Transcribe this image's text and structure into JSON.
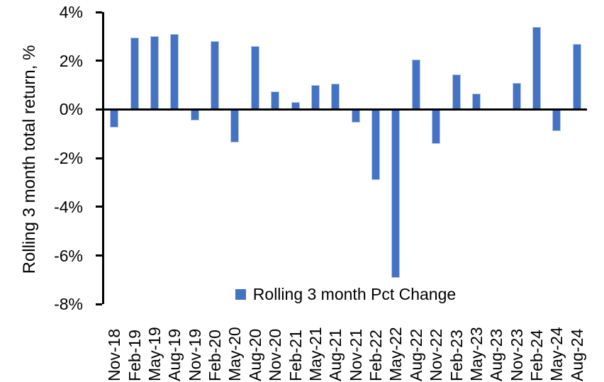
{
  "chart_data": {
    "type": "bar",
    "ylabel": "Rolling 3 month total return, %",
    "xlabel": "",
    "categories": [
      "Nov-18",
      "Feb-19",
      "May-19",
      "Aug-19",
      "Nov-19",
      "Feb-20",
      "May-20",
      "Aug-20",
      "Nov-20",
      "Feb-21",
      "May-21",
      "Aug-21",
      "Nov-21",
      "Feb-22",
      "May-22",
      "Aug-22",
      "Nov-22",
      "Feb-23",
      "May-23",
      "Aug-23",
      "Nov-23",
      "Feb-24",
      "May-24",
      "Aug-24"
    ],
    "series": [
      {
        "name": "Rolling 3 month Pct Change",
        "color": "#4472C4",
        "values": [
          -0.75,
          2.95,
          3.0,
          3.1,
          -0.45,
          2.8,
          -1.35,
          2.6,
          0.75,
          0.3,
          1.0,
          1.05,
          -0.55,
          -2.9,
          -6.9,
          2.05,
          -1.4,
          1.45,
          0.65,
          0.0,
          1.1,
          3.4,
          -0.9,
          2.7
        ]
      }
    ],
    "ylim": [
      -8,
      4
    ],
    "y_ticks": [
      {
        "value": 4,
        "label": "4%"
      },
      {
        "value": 2,
        "label": "2%"
      },
      {
        "value": 0,
        "label": "0%"
      },
      {
        "value": -2,
        "label": "-2%"
      },
      {
        "value": -4,
        "label": "-4%"
      },
      {
        "value": -6,
        "label": "-6%"
      },
      {
        "value": -8,
        "label": "-8%"
      }
    ],
    "grid": false,
    "legend_position": "bottom-center-inside",
    "axis_color": "#000000",
    "background_color": "#FFFFFF"
  }
}
